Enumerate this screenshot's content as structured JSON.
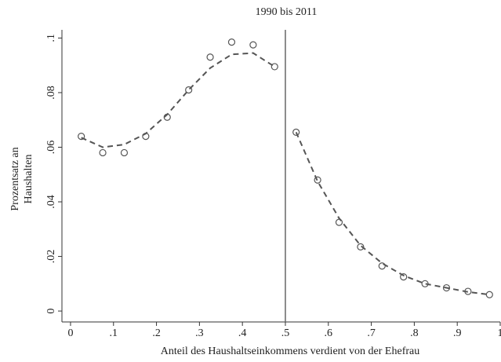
{
  "chart_data": {
    "type": "scatter",
    "title": "1990 bis 2011",
    "xlabel": "Anteil des Haushaltseinkommens verdient von der Ehefrau",
    "ylabel": [
      "Prozentsatz an",
      "Haushalten"
    ],
    "xlim": [
      -0.02,
      1.0
    ],
    "ylim": [
      -0.004,
      0.103
    ],
    "xticks": [
      0,
      {
        "value": 0.1,
        "label": ".1"
      },
      {
        "value": 0.2,
        "label": ".2"
      },
      {
        "value": 0.3,
        "label": ".3"
      },
      {
        "value": 0.4,
        "label": ".4"
      },
      {
        "value": 0.5,
        "label": ".5"
      },
      {
        "value": 0.6,
        "label": ".6"
      },
      {
        "value": 0.7,
        "label": ".7"
      },
      {
        "value": 0.8,
        "label": ".8"
      },
      {
        "value": 0.9,
        "label": ".9"
      },
      1
    ],
    "yticks": [
      0,
      {
        "value": 0.02,
        "label": ".02"
      },
      {
        "value": 0.04,
        "label": ".04"
      },
      {
        "value": 0.06,
        "label": ".06"
      },
      {
        "value": 0.08,
        "label": ".08"
      },
      {
        "value": 0.1,
        "label": ".1"
      }
    ],
    "vline": 0.5,
    "series": [
      {
        "style": "markers",
        "color": "#555555",
        "x": [
          0.025,
          0.075,
          0.125,
          0.175,
          0.225,
          0.275,
          0.325,
          0.375,
          0.425,
          0.475,
          0.525,
          0.575,
          0.625,
          0.675,
          0.725,
          0.775,
          0.825,
          0.875,
          0.925,
          0.975
        ],
        "values": [
          0.064,
          0.058,
          0.058,
          0.064,
          0.071,
          0.081,
          0.093,
          0.0985,
          0.0975,
          0.0895,
          0.0655,
          0.048,
          0.0325,
          0.0235,
          0.0165,
          0.0125,
          0.01,
          0.0085,
          0.0072,
          0.006
        ]
      },
      {
        "style": "dashed",
        "color": "#555555",
        "x": [
          0.025,
          0.075,
          0.125,
          0.175,
          0.225,
          0.275,
          0.325,
          0.375,
          0.425,
          0.475
        ],
        "values": [
          0.0635,
          0.06,
          0.061,
          0.065,
          0.072,
          0.081,
          0.089,
          0.094,
          0.0945,
          0.0895
        ]
      },
      {
        "style": "dashed",
        "color": "#555555",
        "x": [
          0.525,
          0.575,
          0.625,
          0.675,
          0.725,
          0.775,
          0.825,
          0.875,
          0.925,
          0.975
        ],
        "values": [
          0.0655,
          0.0475,
          0.034,
          0.024,
          0.0175,
          0.013,
          0.01,
          0.0085,
          0.007,
          0.006
        ]
      }
    ]
  }
}
